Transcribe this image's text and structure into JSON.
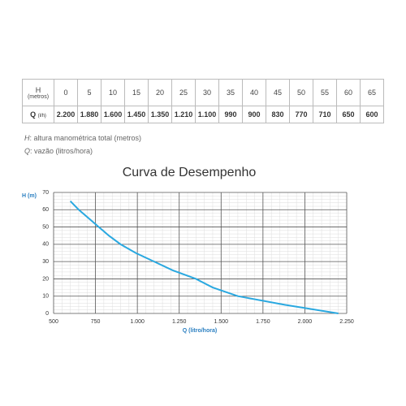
{
  "table": {
    "row_headers": [
      {
        "label": "H",
        "unit": "(metros)"
      },
      {
        "label": "Q",
        "unit": "(l/h)"
      }
    ],
    "rows": [
      [
        "0",
        "5",
        "10",
        "15",
        "20",
        "25",
        "30",
        "35",
        "40",
        "45",
        "50",
        "55",
        "60",
        "65"
      ],
      [
        "2.200",
        "1.880",
        "1.600",
        "1.450",
        "1.350",
        "1.210",
        "1.100",
        "990",
        "900",
        "830",
        "770",
        "710",
        "650",
        "600"
      ]
    ]
  },
  "notes": [
    {
      "term": "H",
      "text": ": altura manométrica total (metros)"
    },
    {
      "term": "Q",
      "text": ": vazão (litros/hora)"
    }
  ],
  "chart_data": {
    "type": "line",
    "title": "Curva de Desempenho",
    "x_label": "Q (litro/hora)",
    "y_label": "H (m)",
    "x": [
      600,
      650,
      710,
      770,
      830,
      900,
      990,
      1100,
      1210,
      1350,
      1450,
      1600,
      1880,
      2200
    ],
    "series": [
      {
        "color": "#29a8e0",
        "values": [
          65,
          60,
          55,
          50,
          45,
          40,
          35,
          30,
          25,
          20,
          15,
          10,
          5,
          0
        ]
      }
    ],
    "xlim": [
      500,
      2250
    ],
    "xticks": [
      500,
      750,
      {
        "value": 1000,
        "label": "1.000"
      },
      {
        "value": 1250,
        "label": "1.250"
      },
      {
        "value": 1500,
        "label": "1.500"
      },
      {
        "value": 1750,
        "label": "1.750"
      },
      {
        "value": 2000,
        "label": "2.000"
      },
      {
        "value": 2250,
        "label": "2.250"
      }
    ],
    "ylim": [
      0,
      70
    ],
    "yticks": [
      0,
      10,
      20,
      30,
      40,
      50,
      60,
      70
    ],
    "grid": true,
    "minor_grid": true
  }
}
